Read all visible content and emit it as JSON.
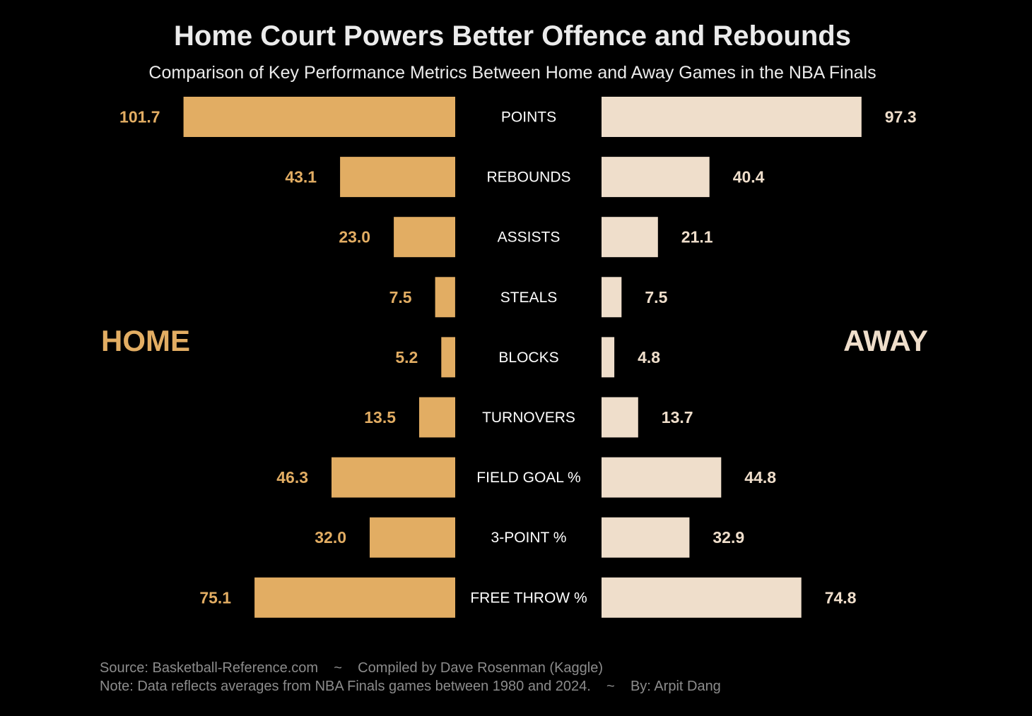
{
  "chart_data": {
    "type": "bar",
    "title": "Home Court Powers Better Offence and Rebounds",
    "subtitle": "Comparison of Key Performance Metrics Between Home and Away Games in the NBA Finals",
    "categories": [
      "POINTS",
      "REBOUNDS",
      "ASSISTS",
      "STEALS",
      "BLOCKS",
      "TURNOVERS",
      "FIELD GOAL %",
      "3-POINT %",
      "FREE THROW %"
    ],
    "series": [
      {
        "name": "HOME",
        "values": [
          101.7,
          43.1,
          23.0,
          7.5,
          5.2,
          13.5,
          46.3,
          32.0,
          75.1
        ],
        "color": "#E2AD63"
      },
      {
        "name": "AWAY",
        "values": [
          97.3,
          40.4,
          21.1,
          7.5,
          4.8,
          13.7,
          44.8,
          32.9,
          74.8
        ],
        "color": "#EFDECB"
      }
    ],
    "value_labels": {
      "home": [
        "101.7",
        "43.1",
        "23.0",
        "7.5",
        "5.2",
        "13.5",
        "46.3",
        "32.0",
        "75.1"
      ],
      "away": [
        "97.3",
        "40.4",
        "21.1",
        "7.5",
        "4.8",
        "13.7",
        "44.8",
        "32.9",
        "74.8"
      ]
    },
    "orientation": "horizontal mirrored",
    "grid": false,
    "legend": "side labels (HOME left, AWAY right)"
  },
  "labels": {
    "home": "HOME",
    "away": "AWAY"
  },
  "footer": {
    "line1": "Source: Basketball-Reference.com    ~    Compiled by Dave Rosenman (Kaggle)",
    "line2": "Note: Data reflects averages from NBA Finals games between 1980 and 2024.    ~    By: Arpit Dang"
  },
  "colors": {
    "background": "#000000",
    "home": "#E2AD63",
    "away": "#EFDECB",
    "title": "#EBEBEB",
    "category_text": "#FFFFFF",
    "footer_text": "#8C8C8C"
  }
}
